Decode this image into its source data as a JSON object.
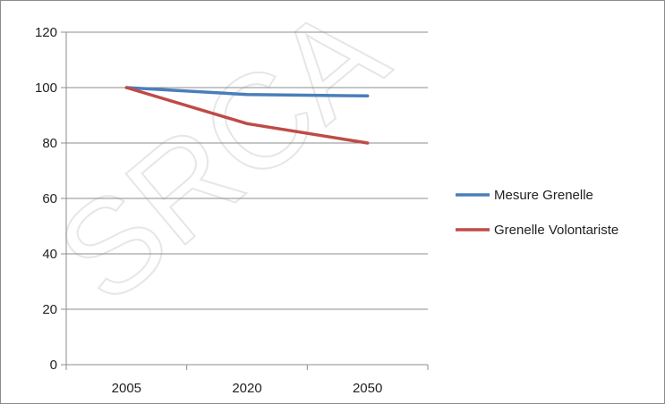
{
  "chart_data": {
    "type": "line",
    "categories": [
      "2005",
      "2020",
      "2050"
    ],
    "series": [
      {
        "name": "Mesure Grenelle",
        "values": [
          100,
          97.5,
          97
        ],
        "color": "#4a7ebb"
      },
      {
        "name": "Grenelle Volontariste",
        "values": [
          100,
          87,
          80
        ],
        "color": "#be4b48"
      }
    ],
    "ylim": [
      0,
      120
    ],
    "yticks": [
      0,
      20,
      40,
      60,
      80,
      100,
      120
    ],
    "grid": "horizontal",
    "legend": "right",
    "title": "",
    "xlabel": "",
    "ylabel": ""
  },
  "watermark_text": "SRCA"
}
